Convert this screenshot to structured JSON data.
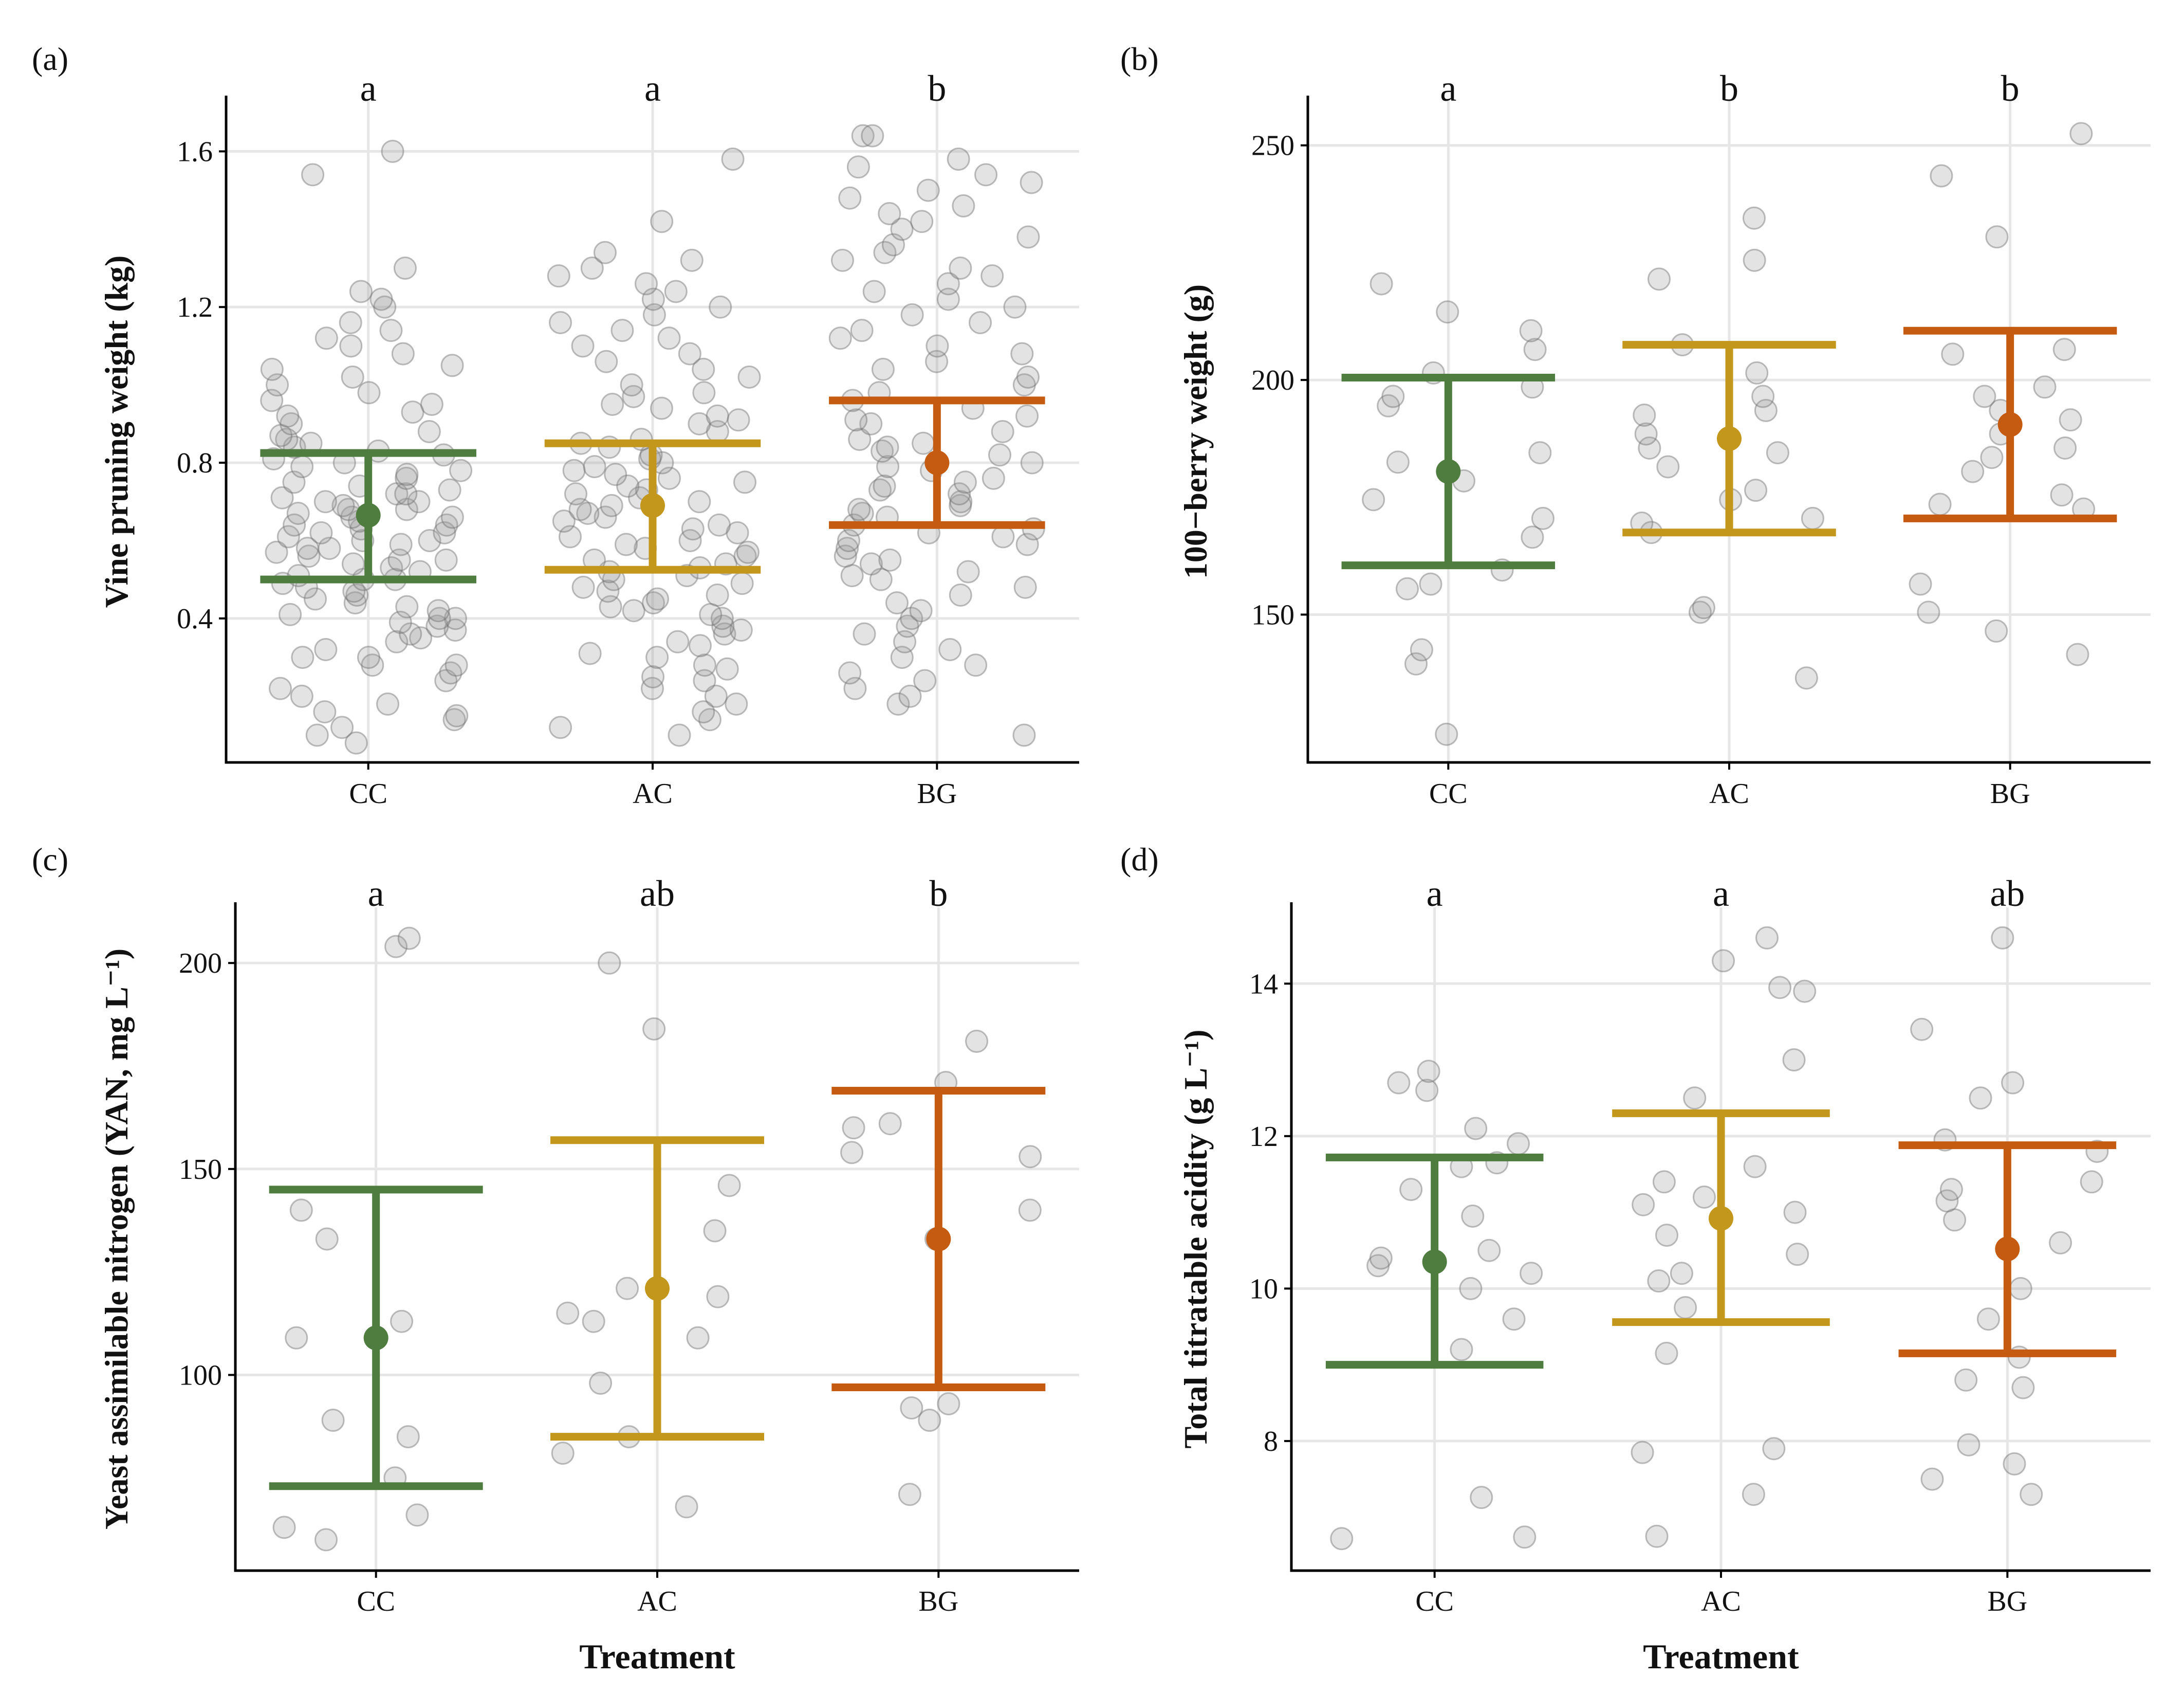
{
  "colors": {
    "CC": "#4e7d3f",
    "AC": "#c3971c",
    "BG": "#c55a11",
    "point_fill": "#9a9a9a",
    "point_stroke": "#6e6e6e",
    "grid": "#e6e6e6"
  },
  "chart_data": [
    {
      "type": "scatter",
      "panel": "(a)",
      "title": "",
      "xlabel": "",
      "ylabel": "Vine pruning weight (kg)",
      "categories": [
        "CC",
        "AC",
        "BG"
      ],
      "ylim": [
        0.03,
        1.73
      ],
      "yticks": [
        0.4,
        0.8,
        1.2,
        1.6
      ],
      "ytick_labels": [
        "0.4",
        "0.8",
        "1.2",
        "1.6"
      ],
      "letters": [
        "a",
        "a",
        "b"
      ],
      "summary": [
        {
          "mean": 0.665,
          "lower": 0.5,
          "upper": 0.825
        },
        {
          "mean": 0.69,
          "lower": 0.525,
          "upper": 0.85
        },
        {
          "mean": 0.8,
          "lower": 0.64,
          "upper": 0.96
        }
      ],
      "points": [
        [
          0.08,
          0.1,
          0.12,
          0.14,
          0.15,
          0.16,
          0.18,
          0.2,
          0.22,
          0.24,
          0.26,
          0.28,
          0.28,
          0.3,
          0.3,
          0.32,
          0.34,
          0.35,
          0.36,
          0.37,
          0.38,
          0.39,
          0.4,
          0.4,
          0.41,
          0.42,
          0.43,
          0.44,
          0.45,
          0.46,
          0.47,
          0.48,
          0.49,
          0.5,
          0.5,
          0.51,
          0.52,
          0.53,
          0.54,
          0.55,
          0.55,
          0.56,
          0.57,
          0.58,
          0.58,
          0.59,
          0.6,
          0.6,
          0.61,
          0.62,
          0.62,
          0.63,
          0.64,
          0.64,
          0.65,
          0.66,
          0.66,
          0.67,
          0.68,
          0.68,
          0.69,
          0.7,
          0.7,
          0.71,
          0.72,
          0.72,
          0.73,
          0.74,
          0.75,
          0.76,
          0.77,
          0.78,
          0.79,
          0.8,
          0.81,
          0.82,
          0.83,
          0.84,
          0.85,
          0.86,
          0.87,
          0.88,
          0.9,
          0.92,
          0.93,
          0.95,
          0.96,
          0.98,
          1.0,
          1.02,
          1.04,
          1.05,
          1.08,
          1.1,
          1.12,
          1.14,
          1.16,
          1.2,
          1.22,
          1.24,
          1.3,
          1.54,
          1.6
        ],
        [
          0.1,
          0.12,
          0.14,
          0.16,
          0.18,
          0.2,
          0.22,
          0.24,
          0.25,
          0.27,
          0.28,
          0.3,
          0.31,
          0.33,
          0.34,
          0.36,
          0.37,
          0.38,
          0.4,
          0.41,
          0.42,
          0.43,
          0.44,
          0.45,
          0.46,
          0.47,
          0.48,
          0.49,
          0.5,
          0.51,
          0.52,
          0.53,
          0.54,
          0.55,
          0.56,
          0.57,
          0.58,
          0.59,
          0.6,
          0.61,
          0.62,
          0.63,
          0.64,
          0.65,
          0.66,
          0.67,
          0.68,
          0.69,
          0.7,
          0.71,
          0.72,
          0.73,
          0.74,
          0.75,
          0.76,
          0.77,
          0.78,
          0.79,
          0.8,
          0.81,
          0.82,
          0.84,
          0.85,
          0.86,
          0.88,
          0.9,
          0.91,
          0.92,
          0.94,
          0.95,
          0.97,
          0.98,
          1.0,
          1.02,
          1.04,
          1.06,
          1.08,
          1.1,
          1.12,
          1.14,
          1.16,
          1.18,
          1.2,
          1.22,
          1.24,
          1.26,
          1.28,
          1.3,
          1.32,
          1.34,
          1.42,
          1.58
        ],
        [
          0.1,
          0.18,
          0.2,
          0.22,
          0.24,
          0.26,
          0.28,
          0.3,
          0.32,
          0.34,
          0.36,
          0.38,
          0.4,
          0.42,
          0.44,
          0.46,
          0.48,
          0.5,
          0.51,
          0.52,
          0.54,
          0.55,
          0.56,
          0.58,
          0.59,
          0.6,
          0.61,
          0.62,
          0.63,
          0.64,
          0.66,
          0.67,
          0.68,
          0.69,
          0.7,
          0.72,
          0.73,
          0.74,
          0.75,
          0.76,
          0.78,
          0.79,
          0.8,
          0.82,
          0.83,
          0.84,
          0.85,
          0.86,
          0.88,
          0.9,
          0.91,
          0.92,
          0.94,
          0.96,
          0.98,
          1.0,
          1.02,
          1.04,
          1.06,
          1.08,
          1.1,
          1.12,
          1.14,
          1.16,
          1.18,
          1.2,
          1.22,
          1.24,
          1.26,
          1.28,
          1.3,
          1.32,
          1.34,
          1.36,
          1.38,
          1.4,
          1.42,
          1.44,
          1.46,
          1.48,
          1.5,
          1.52,
          1.54,
          1.56,
          1.58,
          1.64,
          1.64
        ]
      ]
    },
    {
      "type": "scatter",
      "panel": "(b)",
      "title": "",
      "xlabel": "",
      "ylabel": "100−berry weight (g)",
      "categories": [
        "CC",
        "AC",
        "BG"
      ],
      "ylim": [
        118.5,
        259.5
      ],
      "yticks": [
        150,
        200,
        250
      ],
      "ytick_labels": [
        "150",
        "200",
        "250"
      ],
      "letters": [
        "a",
        "b",
        "b"
      ],
      "summary": [
        {
          "mean": 180.5,
          "lower": 160.5,
          "upper": 200.5
        },
        {
          "mean": 187.5,
          "lower": 167.5,
          "upper": 207.5
        },
        {
          "mean": 190.5,
          "lower": 170.5,
          "upper": 210.5
        }
      ],
      "points": [
        [
          124.5,
          139.5,
          142.5,
          155.5,
          156.5,
          159.5,
          166.5,
          170.5,
          174.5,
          178.5,
          182.5,
          184.5,
          194.5,
          196.5,
          198.5,
          201.5,
          206.5,
          210.5,
          214.5,
          220.5
        ],
        [
          136.5,
          150.5,
          151.5,
          167.5,
          169.5,
          170.5,
          174.5,
          176.5,
          181.5,
          184.5,
          185.5,
          188.5,
          192.5,
          193.5,
          196.5,
          201.5,
          207.5,
          221.5,
          225.5,
          234.5
        ],
        [
          141.5,
          146.5,
          150.5,
          156.5,
          172.5,
          173.5,
          175.5,
          180.5,
          183.5,
          185.5,
          188.5,
          190.5,
          191.5,
          193.5,
          196.5,
          198.5,
          205.5,
          206.5,
          230.5,
          243.5,
          252.5
        ]
      ]
    },
    {
      "type": "scatter",
      "panel": "(c)",
      "title": "",
      "xlabel": "Treatment",
      "ylabel": "Yeast assimilable nitrogen (YAN, mg L⁻¹)",
      "categories": [
        "CC",
        "AC",
        "BG"
      ],
      "ylim": [
        52.5,
        213.5
      ],
      "yticks": [
        100,
        150,
        200
      ],
      "ytick_labels": [
        "100",
        "150",
        "200"
      ],
      "letters": [
        "a",
        "ab",
        "b"
      ],
      "summary": [
        {
          "mean": 109,
          "lower": 73,
          "upper": 145
        },
        {
          "mean": 121,
          "lower": 85,
          "upper": 157
        },
        {
          "mean": 133,
          "lower": 97,
          "upper": 169
        }
      ],
      "points": [
        [
          60,
          63,
          66,
          75,
          85,
          89,
          109,
          113,
          133,
          140,
          204,
          206
        ],
        [
          68,
          81,
          85,
          98,
          109,
          113,
          115,
          119,
          121,
          135,
          146,
          184,
          200
        ],
        [
          71,
          89,
          92,
          93,
          133,
          140,
          153,
          154,
          160,
          161,
          171,
          181
        ]
      ]
    },
    {
      "type": "scatter",
      "panel": "(d)",
      "title": "",
      "xlabel": "Treatment",
      "ylabel": "Total titratable acidity (g L⁻¹)",
      "categories": [
        "CC",
        "AC",
        "BG"
      ],
      "ylim": [
        6.3,
        15.0
      ],
      "yticks": [
        8,
        10,
        12,
        14
      ],
      "ytick_labels": [
        "8",
        "10",
        "12",
        "14"
      ],
      "letters": [
        "a",
        "a",
        "ab"
      ],
      "summary": [
        {
          "mean": 10.35,
          "lower": 9.0,
          "upper": 11.72
        },
        {
          "mean": 10.92,
          "lower": 9.56,
          "upper": 12.3
        },
        {
          "mean": 10.52,
          "lower": 9.15,
          "upper": 11.88
        }
      ],
      "points": [
        [
          6.72,
          6.74,
          7.26,
          9.2,
          9.6,
          10.0,
          10.2,
          10.3,
          10.4,
          10.5,
          10.95,
          11.3,
          11.6,
          11.65,
          11.9,
          12.1,
          12.6,
          12.7,
          12.85
        ],
        [
          6.75,
          7.3,
          7.85,
          7.9,
          9.15,
          9.75,
          10.1,
          10.2,
          10.45,
          10.7,
          11.0,
          11.1,
          11.2,
          11.4,
          11.6,
          12.5,
          13.0,
          13.9,
          13.95,
          14.3,
          14.6
        ],
        [
          7.3,
          7.5,
          7.7,
          7.95,
          8.7,
          8.8,
          9.1,
          9.6,
          10.0,
          10.6,
          10.9,
          11.15,
          11.3,
          11.4,
          11.8,
          11.95,
          12.5,
          12.7,
          13.4,
          14.6
        ]
      ]
    }
  ]
}
